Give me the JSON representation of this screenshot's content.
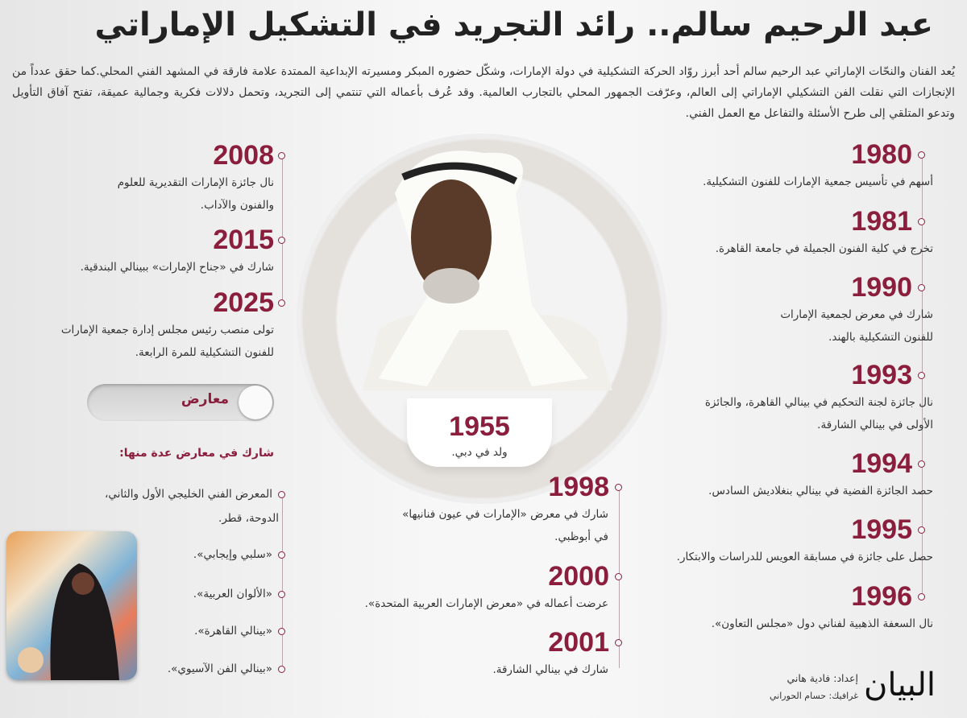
{
  "header": {
    "title": "عبد الرحيم سالم.. رائد التجريد في التشكيل الإماراتي",
    "intro": "يُعد الفنان والنحّات الإماراتي عبد الرحيم سالم أحد أبرز روّاد الحركة التشكيلية في دولة الإمارات، وشكّل حضوره المبكر ومسيرته الإبداعية الممتدة علامة فارقة في المشهد الفني المحلي.كما حقق عدداً من الإنجازات التي نقلت الفن التشكيلي الإماراتي إلى العالم، وعرّفت الجمهور المحلي بالتجارب العالمية. وقد عُرف بأعماله التي تنتمي إلى التجريد، وتحمل دلالات فكرية وجمالية عميقة، تفتح آفاق التأويل وتدعو المتلقي إلى طرح الأسئلة والتفاعل مع العمل الفني."
  },
  "accent_color": "#8a1e3c",
  "birth": {
    "year": "1955",
    "text": "ولد في دبي."
  },
  "right_timeline": [
    {
      "year": "1980",
      "lines": [
        "أسهم في تأسيس جمعية الإمارات للفنون التشكيلية."
      ]
    },
    {
      "year": "1981",
      "lines": [
        "تخرج في كلية الفنون الجميلة في جامعة القاهرة."
      ]
    },
    {
      "year": "1990",
      "lines": [
        "شارك في معرض لجمعية الإمارات",
        "للفنون التشكيلية بالهند."
      ]
    },
    {
      "year": "1993",
      "lines": [
        "نال جائزة لجنة التحكيم في بينالي القاهرة، والجائزة",
        "الأولى في بينالي الشارقة."
      ]
    },
    {
      "year": "1994",
      "lines": [
        "حصد الجائزة الفضية في بينالي بنغلاديش السادس."
      ]
    },
    {
      "year": "1995",
      "lines": [
        "حصل على جائزة في مسابقة العويس للدراسات والابتكار."
      ]
    },
    {
      "year": "1996",
      "lines": [
        "نال السعفة الذهبية لفناني دول «مجلس التعاون»."
      ]
    }
  ],
  "center_timeline": [
    {
      "year": "1998",
      "lines": [
        "شارك في معرض «الإمارات في عيون فنانيها»",
        "في أبوظبي."
      ]
    },
    {
      "year": "2000",
      "lines": [
        "عرضت أعماله في «معرض الإمارات العربية المتحدة»."
      ]
    },
    {
      "year": "2001",
      "lines": [
        "شارك في بينالي الشارقة."
      ]
    }
  ],
  "left_timeline": [
    {
      "year": "2008",
      "lines": [
        "نال جائزة الإمارات التقديرية للعلوم",
        "والفنون والآداب."
      ]
    },
    {
      "year": "2015",
      "lines": [
        "شارك في «جناح الإمارات» ببينالي البندقية."
      ]
    },
    {
      "year": "2025",
      "lines": [
        "تولى منصب رئيس مجلس إدارة جمعية الإمارات",
        "للفنون التشكيلية للمرة الرابعة."
      ]
    }
  ],
  "exhibitions": {
    "toggle_label": "معارض",
    "heading": "شارك في معارض عدة منها:",
    "items": [
      [
        "المعرض الفني الخليجي الأول والثاني،",
        "الدوحة، قطر."
      ],
      [
        "«سلبي وإيجابي»."
      ],
      [
        "«الألوان العربية»."
      ],
      [
        "«بينالي القاهرة»."
      ],
      [
        "«بينالي الفن الآسيوي»."
      ]
    ]
  },
  "footer": {
    "logo": "البيان",
    "prepared_by": "إعداد: فادية هاني",
    "graphics_by": "غرافيك: حسام الحوراني"
  }
}
